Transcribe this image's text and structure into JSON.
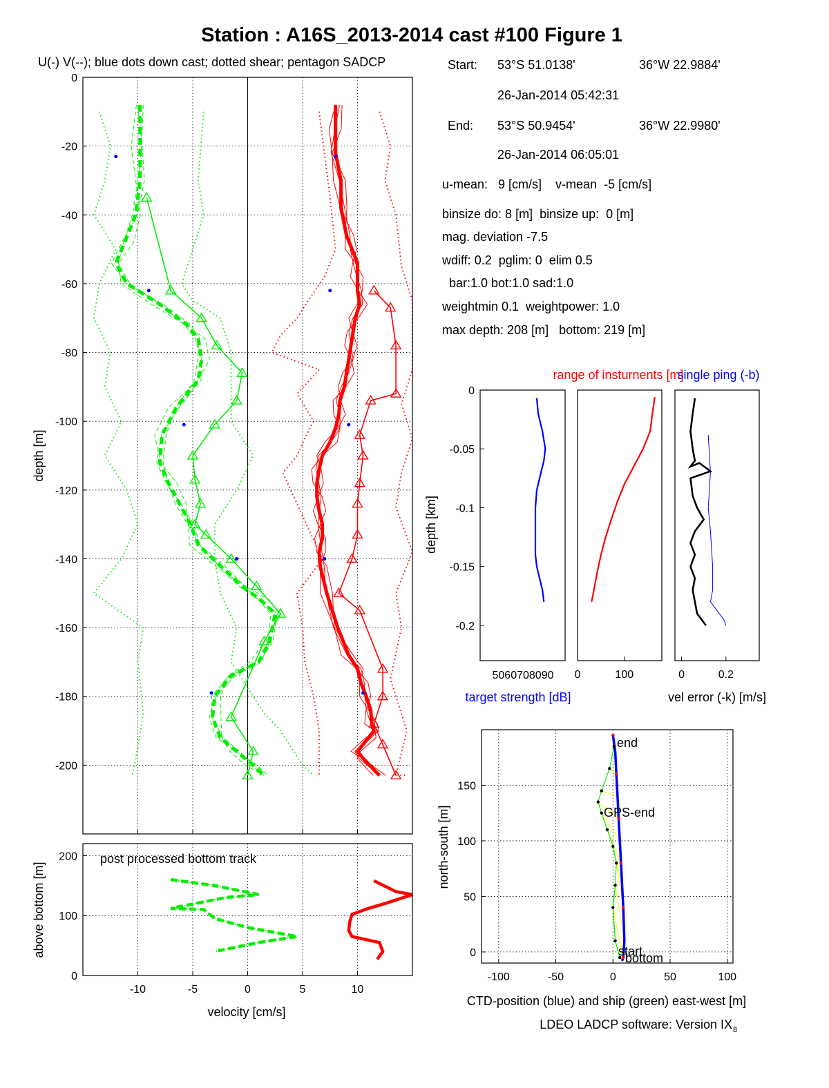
{
  "title": "Station : A16S_2013-2014 cast #100  Figure 1",
  "subtitle": "U(-) V(--); blue dots down cast; dotted shear; pentagon SADCP",
  "info": {
    "start_label": "Start:",
    "start_lat": "53°S 51.0138'",
    "start_lon": "36°W 22.9884'",
    "start_time": "26-Jan-2014 05:42:31",
    "end_label": "End:",
    "end_lat": "53°S 50.9454'",
    "end_lon": "36°W 22.9980'",
    "end_time": "26-Jan-2014 06:05:01",
    "lines": [
      "u-mean:   9 [cm/s]    v-mean  -5 [cm/s]",
      "binsize do: 8 [m]  binsize up:  0 [m]",
      "mag. deviation -7.5",
      "wdiff: 0.2  pglim: 0  elim 0.5",
      "  bar:1.0 bot:1.0 sad:1.0",
      "weightmin 0.1  weightpower: 1.0",
      "max depth: 208 [m]   bottom: 219 [m]"
    ]
  },
  "colors": {
    "u": "#ff0000",
    "v": "#00ee00",
    "blue": "#0000ff",
    "black": "#000000",
    "yellow": "#ffff00",
    "grid": "#000000"
  },
  "chart_data": [
    {
      "id": "velocity-profile",
      "type": "line",
      "xlabel": "",
      "ylabel": "depth [m]",
      "xlim": [
        -15,
        15
      ],
      "ylim": [
        -220,
        0
      ],
      "xticks": [
        -10,
        -5,
        0,
        5,
        10
      ],
      "yticks": [
        0,
        -20,
        -40,
        -60,
        -80,
        -100,
        -120,
        -140,
        -160,
        -180,
        -200
      ],
      "grid": true,
      "series": [
        {
          "name": "U",
          "style": "thick",
          "color": "red",
          "x": [
            8,
            8,
            8,
            8.5,
            8.5,
            9,
            9.5,
            10,
            10,
            10,
            10.2,
            9.8,
            9.6,
            9.4,
            9.2,
            9,
            8.8,
            8.4,
            8.3,
            8,
            7.5,
            6.8,
            6.5,
            6.3,
            6.3,
            6.5,
            6.8,
            6.8,
            6.5,
            6.6,
            7.2,
            8.2,
            9.2,
            10,
            10.3,
            10.8,
            11.2,
            11.3,
            11.5,
            11,
            10,
            10.5,
            12
          ],
          "y": [
            -8,
            -15,
            -22,
            -30,
            -38,
            -46,
            -50,
            -54,
            -58,
            -62,
            -66,
            -70,
            -74,
            -78,
            -82,
            -86,
            -90,
            -94,
            -98,
            -102,
            -106,
            -110,
            -114,
            -118,
            -122,
            -126,
            -130,
            -134,
            -138,
            -142,
            -150,
            -160,
            -168,
            -172,
            -176,
            -180,
            -184,
            -188,
            -190,
            -192,
            -196,
            -198,
            -203
          ]
        },
        {
          "name": "V",
          "style": "thick-dashed",
          "color": "green",
          "x": [
            -9.8,
            -9.8,
            -9.8,
            -10.2,
            -11.2,
            -12,
            -11,
            -8,
            -5.5,
            -4.5,
            -4.2,
            -4.5,
            -6.5,
            -7.8,
            -8,
            -7.2,
            -6.2,
            -5.2,
            -4.5,
            -2.5,
            -0.5,
            1.2,
            2.5,
            2,
            1,
            -1.5,
            -3,
            -3.2,
            -2.5,
            -1,
            0.5,
            1.5
          ],
          "y": [
            -8,
            -20,
            -30,
            -40,
            -48,
            -54,
            -60,
            -66,
            -72,
            -76,
            -82,
            -88,
            -96,
            -104,
            -112,
            -118,
            -124,
            -130,
            -136,
            -142,
            -148,
            -152,
            -156,
            -164,
            -170,
            -174,
            -180,
            -186,
            -192,
            -196,
            -200,
            -203
          ]
        },
        {
          "name": "U-up",
          "style": "triangle",
          "color": "red",
          "x": [
            11.5,
            13,
            13.5,
            13.5,
            11.2,
            10.2,
            10.5,
            10.2,
            10,
            10,
            9.5,
            8.3,
            10.2,
            12.3,
            12.3,
            11.5,
            12.3,
            13.5
          ],
          "y": [
            -62,
            -67,
            -78,
            -92,
            -94,
            -104,
            -110,
            -118,
            -124,
            -133,
            -140,
            -150,
            -155,
            -172,
            -180,
            -188,
            -194,
            -203
          ]
        },
        {
          "name": "V-up",
          "style": "triangle",
          "color": "green",
          "x": [
            -9.2,
            -7,
            -4.2,
            -2.8,
            -0.5,
            -1,
            -3,
            -5,
            -4.8,
            -4.3,
            -4.8,
            -3.8,
            -1.5,
            0.8,
            3,
            1.5,
            -1.5,
            0.5,
            0
          ],
          "y": [
            -35,
            -62,
            -70,
            -78,
            -86,
            -94,
            -101,
            -110,
            -117,
            -124,
            -130,
            -133,
            -140,
            -148,
            -156,
            -164,
            -186,
            -196,
            -203
          ]
        },
        {
          "name": "U-shear-left",
          "style": "dotted",
          "color": "red",
          "x": [
            6.5,
            7.5,
            8,
            7,
            5.5,
            4.5,
            3,
            2.2,
            6.5,
            4.5,
            6,
            5.2,
            4.5,
            3.2,
            6.8,
            4.5,
            5,
            5.2,
            6,
            6.5,
            6.5
          ],
          "y": [
            -10,
            -35,
            -50,
            -58,
            -65,
            -70,
            -75,
            -80,
            -85,
            -92,
            -100,
            -105,
            -110,
            -115,
            -140,
            -150,
            -160,
            -170,
            -180,
            -190,
            -203
          ]
        },
        {
          "name": "U-shear-right",
          "style": "dotted",
          "color": "red",
          "x": [
            12,
            13,
            12.5,
            13.5,
            14,
            15,
            15,
            15,
            14,
            15,
            14,
            13.5,
            15,
            13.5,
            14,
            13,
            14.5,
            13.5,
            14.5
          ],
          "y": [
            -10,
            -20,
            -30,
            -40,
            -55,
            -65,
            -75,
            -85,
            -95,
            -105,
            -115,
            -125,
            -138,
            -150,
            -160,
            -175,
            -190,
            -203,
            -203
          ]
        },
        {
          "name": "V-shear-left",
          "style": "dotted",
          "color": "green",
          "x": [
            -13.5,
            -12.5,
            -13,
            -14,
            -12,
            -13.5,
            -14,
            -12.5,
            -13,
            -11.5,
            -13,
            -11,
            -10,
            -11.5,
            -14,
            -9.5,
            -10,
            -9.5,
            -10,
            -10.5
          ],
          "y": [
            -10,
            -20,
            -30,
            -40,
            -50,
            -60,
            -70,
            -80,
            -90,
            -100,
            -110,
            -120,
            -130,
            -140,
            -150,
            -160,
            -170,
            -185,
            -195,
            -203
          ]
        },
        {
          "name": "V-shear-right",
          "style": "dotted",
          "color": "green",
          "x": [
            -4,
            -4.5,
            -4,
            -5,
            -6,
            -5,
            -2.5,
            -1.5,
            -1.5,
            -1.5,
            0.5,
            -1,
            -3,
            -3,
            -2.5,
            -1,
            -1.5,
            -0.5,
            0.5,
            1.5,
            3,
            5,
            6
          ],
          "y": [
            -10,
            -30,
            -40,
            -50,
            -60,
            -65,
            -70,
            -80,
            -90,
            -100,
            -110,
            -120,
            -130,
            -140,
            -150,
            -160,
            -170,
            -175,
            -180,
            -185,
            -190,
            -200,
            -203
          ]
        }
      ],
      "blue_dots": [
        {
          "x": -12,
          "y": -23
        },
        {
          "x": 8,
          "y": -23
        },
        {
          "x": -9,
          "y": -62
        },
        {
          "x": 7.5,
          "y": -62
        },
        {
          "x": -5.8,
          "y": -101
        },
        {
          "x": 9.2,
          "y": -101
        },
        {
          "x": -1,
          "y": -140
        },
        {
          "x": 7,
          "y": -140
        },
        {
          "x": -3.3,
          "y": -179
        },
        {
          "x": 10.5,
          "y": -179
        }
      ]
    },
    {
      "id": "bottom-track",
      "type": "line",
      "annotation": "post processed bottom track",
      "xlabel": "velocity [cm/s]",
      "ylabel": "above bottom [m]",
      "xlim": [
        -15,
        15
      ],
      "ylim": [
        0,
        220
      ],
      "xticks": [
        -10,
        -5,
        0,
        5,
        10
      ],
      "yticks": [
        0,
        100,
        200
      ],
      "grid": true,
      "series": [
        {
          "name": "U-bt",
          "color": "red",
          "x": [
            11.5,
            13.5,
            15,
            12.5,
            11,
            9.5,
            9.3,
            9.2,
            9.5,
            12,
            12.3,
            11.8
          ],
          "y": [
            158,
            140,
            135,
            120,
            112,
            102,
            90,
            75,
            65,
            55,
            40,
            27
          ]
        },
        {
          "name": "V-bt",
          "color": "green",
          "x": [
            -7,
            -3,
            1,
            -2,
            -7,
            -4,
            -3,
            0,
            4.5,
            1,
            -3
          ],
          "y": [
            160,
            150,
            135,
            130,
            112,
            110,
            95,
            80,
            65,
            55,
            40
          ]
        }
      ]
    },
    {
      "id": "target-strength",
      "type": "line",
      "title": "",
      "ylabel": "depth [km]",
      "xlabel": "target strength [dB]",
      "xlim": [
        40,
        100
      ],
      "ylim": [
        -0.23,
        0
      ],
      "xtick_text": "5060708090",
      "yticks": [
        0,
        -0.05,
        -0.1,
        -0.15,
        -0.2
      ],
      "series": [
        {
          "name": "",
          "color": "blue",
          "x": [
            80,
            81,
            84,
            86,
            85,
            83,
            80,
            79,
            79,
            79,
            79,
            80,
            82,
            84,
            85
          ],
          "y": [
            -0.007,
            -0.02,
            -0.035,
            -0.05,
            -0.06,
            -0.07,
            -0.085,
            -0.1,
            -0.115,
            -0.13,
            -0.14,
            -0.15,
            -0.16,
            -0.17,
            -0.18
          ]
        }
      ]
    },
    {
      "id": "range",
      "type": "line",
      "title": "range of insturnents [m]",
      "xlim": [
        0,
        180
      ],
      "ylim": [
        -0.23,
        0
      ],
      "xticks": [
        0,
        100
      ],
      "series": [
        {
          "name": "",
          "color": "red",
          "x": [
            165,
            160,
            155,
            140,
            120,
            100,
            85,
            72,
            60,
            50,
            42,
            35,
            30
          ],
          "y": [
            -0.006,
            -0.02,
            -0.035,
            -0.05,
            -0.065,
            -0.08,
            -0.095,
            -0.11,
            -0.125,
            -0.14,
            -0.155,
            -0.17,
            -0.18
          ]
        }
      ]
    },
    {
      "id": "vel-error",
      "type": "line",
      "title": "single ping (-b)",
      "xlabel": "vel error (-k) [m/s]",
      "xlim": [
        -0.03,
        0.35
      ],
      "ylim": [
        -0.23,
        0
      ],
      "xticks": [
        0,
        0.2
      ],
      "series": [
        {
          "name": "",
          "color": "black",
          "x": [
            0.06,
            0.05,
            0.04,
            0.05,
            0.06,
            0.04,
            0.08,
            0.13,
            0.04,
            0.05,
            0.07,
            0.1,
            0.06,
            0.04,
            0.06,
            0.04,
            0.06,
            0.05,
            0.07,
            0.11
          ],
          "y": [
            -0.007,
            -0.02,
            -0.035,
            -0.05,
            -0.06,
            -0.065,
            -0.062,
            -0.069,
            -0.075,
            -0.09,
            -0.1,
            -0.11,
            -0.12,
            -0.13,
            -0.14,
            -0.15,
            -0.16,
            -0.17,
            -0.19,
            -0.2
          ]
        },
        {
          "name": "",
          "color": "blue",
          "x": [
            0.12,
            0.13,
            0.12,
            0.13,
            0.14,
            0.14,
            0.13,
            0.15,
            0.19,
            0.2
          ],
          "y": [
            -0.038,
            -0.07,
            -0.1,
            -0.12,
            -0.15,
            -0.17,
            -0.18,
            -0.185,
            -0.195,
            -0.2
          ]
        }
      ]
    },
    {
      "id": "position",
      "type": "line",
      "xlabel": "CTD-position (blue) and ship (green) east-west [m]",
      "ylabel": "north-south [m]",
      "xlim": [
        -115,
        105
      ],
      "ylim": [
        -10,
        200
      ],
      "xticks": [
        -100,
        -50,
        0,
        50,
        100
      ],
      "yticks": [
        0,
        50,
        100,
        150
      ],
      "annotations": [
        "end",
        "GPS-end",
        "start",
        "bottom"
      ],
      "series": [
        {
          "name": "CTD",
          "color": "blue",
          "x": [
            0,
            2,
            3,
            4,
            5,
            6,
            7,
            8,
            9,
            10,
            9,
            8
          ],
          "y": [
            195,
            180,
            160,
            140,
            120,
            100,
            80,
            60,
            40,
            10,
            -5,
            -8
          ]
        },
        {
          "name": "ship",
          "color": "green",
          "x": [
            0,
            1,
            -3,
            -10,
            -13,
            -10,
            -5,
            0,
            3,
            2,
            0,
            2,
            6
          ],
          "y": [
            195,
            185,
            165,
            145,
            135,
            125,
            110,
            95,
            80,
            60,
            40,
            10,
            -5
          ]
        }
      ]
    }
  ],
  "footer": {
    "software": "LDEO LADCP software: Version IX",
    "version_sub": "8"
  }
}
